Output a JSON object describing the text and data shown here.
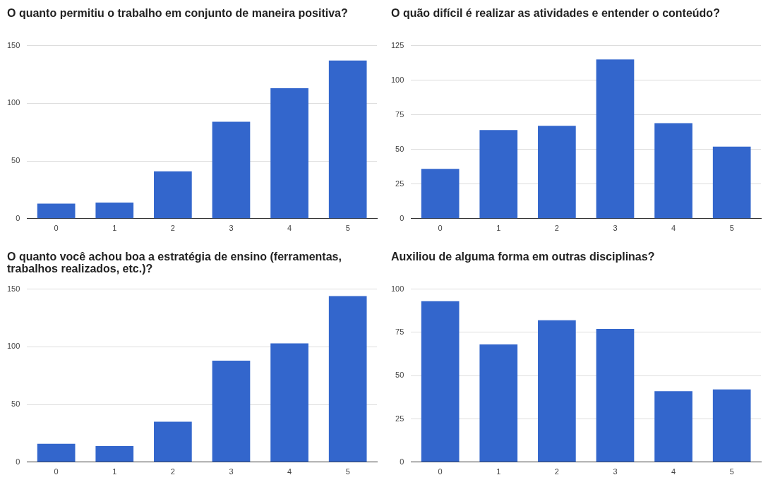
{
  "chart_data": [
    {
      "type": "bar",
      "title": "O quanto permitiu o trabalho em conjunto de maneira positiva?",
      "categories": [
        "0",
        "1",
        "2",
        "3",
        "4",
        "5"
      ],
      "values": [
        13,
        14,
        41,
        84,
        113,
        137
      ],
      "color": "#3366cc",
      "ylim": [
        0,
        150
      ],
      "yticks": [
        0,
        50,
        100,
        150
      ],
      "grid": "y"
    },
    {
      "type": "bar",
      "title": "O quão difícil é realizar as atividades e entender o conteúdo?",
      "categories": [
        "0",
        "1",
        "2",
        "3",
        "4",
        "5"
      ],
      "values": [
        36,
        64,
        67,
        115,
        69,
        52
      ],
      "color": "#3366cc",
      "ylim": [
        0,
        125
      ],
      "yticks": [
        0,
        25,
        50,
        75,
        100,
        125
      ],
      "grid": "y"
    },
    {
      "type": "bar",
      "title": "O quanto você achou boa a estratégia de ensino (ferramentas, trabalhos realizados, etc.)?",
      "categories": [
        "0",
        "1",
        "2",
        "3",
        "4",
        "5"
      ],
      "values": [
        16,
        14,
        35,
        88,
        103,
        144
      ],
      "color": "#3366cc",
      "ylim": [
        0,
        150
      ],
      "yticks": [
        0,
        50,
        100,
        150
      ],
      "grid": "y"
    },
    {
      "type": "bar",
      "title": "Auxiliou de alguma forma em outras disciplinas?",
      "categories": [
        "0",
        "1",
        "2",
        "3",
        "4",
        "5"
      ],
      "values": [
        93,
        68,
        82,
        77,
        41,
        42
      ],
      "color": "#3366cc",
      "ylim": [
        0,
        100
      ],
      "yticks": [
        0,
        25,
        50,
        75,
        100
      ],
      "grid": "y"
    }
  ]
}
